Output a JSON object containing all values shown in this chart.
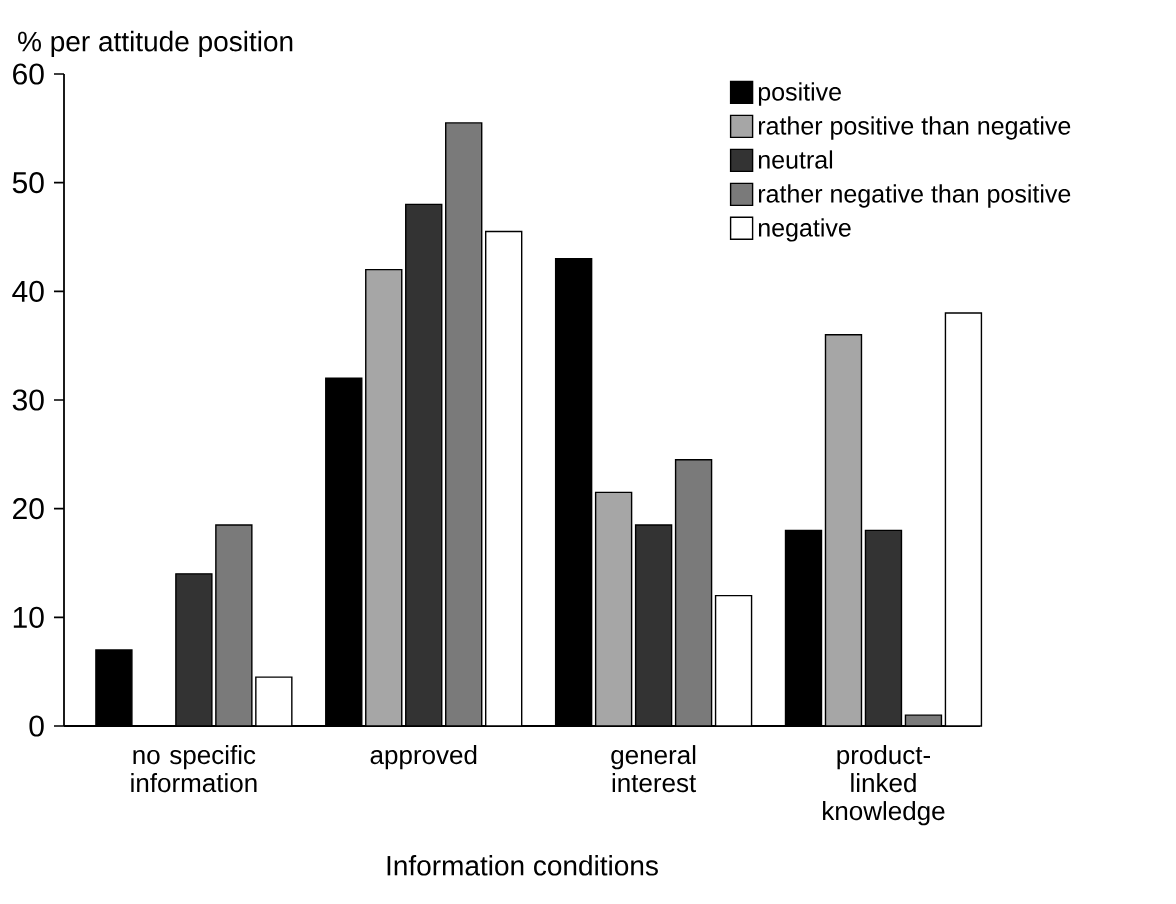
{
  "chart_data": {
    "type": "bar",
    "ylabel": "% per attitude position",
    "xlabel": "Information conditions",
    "categories": [
      "no specific information",
      "approved",
      "general interest",
      "product-linked knowledge"
    ],
    "series": [
      {
        "name": "positive",
        "color": "#000000",
        "values": [
          7,
          32,
          43,
          18
        ]
      },
      {
        "name": "rather positive than negative",
        "color": "#a6a6a6",
        "values": [
          null,
          42,
          21.5,
          36
        ]
      },
      {
        "name": "neutral",
        "color": "#333333",
        "values": [
          14,
          48,
          18.5,
          18
        ]
      },
      {
        "name": "rather negative than positive",
        "color": "#7a7a7a",
        "values": [
          18.5,
          55.5,
          24.5,
          1
        ]
      },
      {
        "name": "negative",
        "color": "#ffffff",
        "values": [
          4.5,
          45.5,
          12,
          38
        ]
      }
    ],
    "ylim": [
      0,
      60
    ],
    "yticks": [
      0,
      10,
      20,
      30,
      40,
      50,
      60
    ],
    "grid": false,
    "legend": "top right"
  }
}
